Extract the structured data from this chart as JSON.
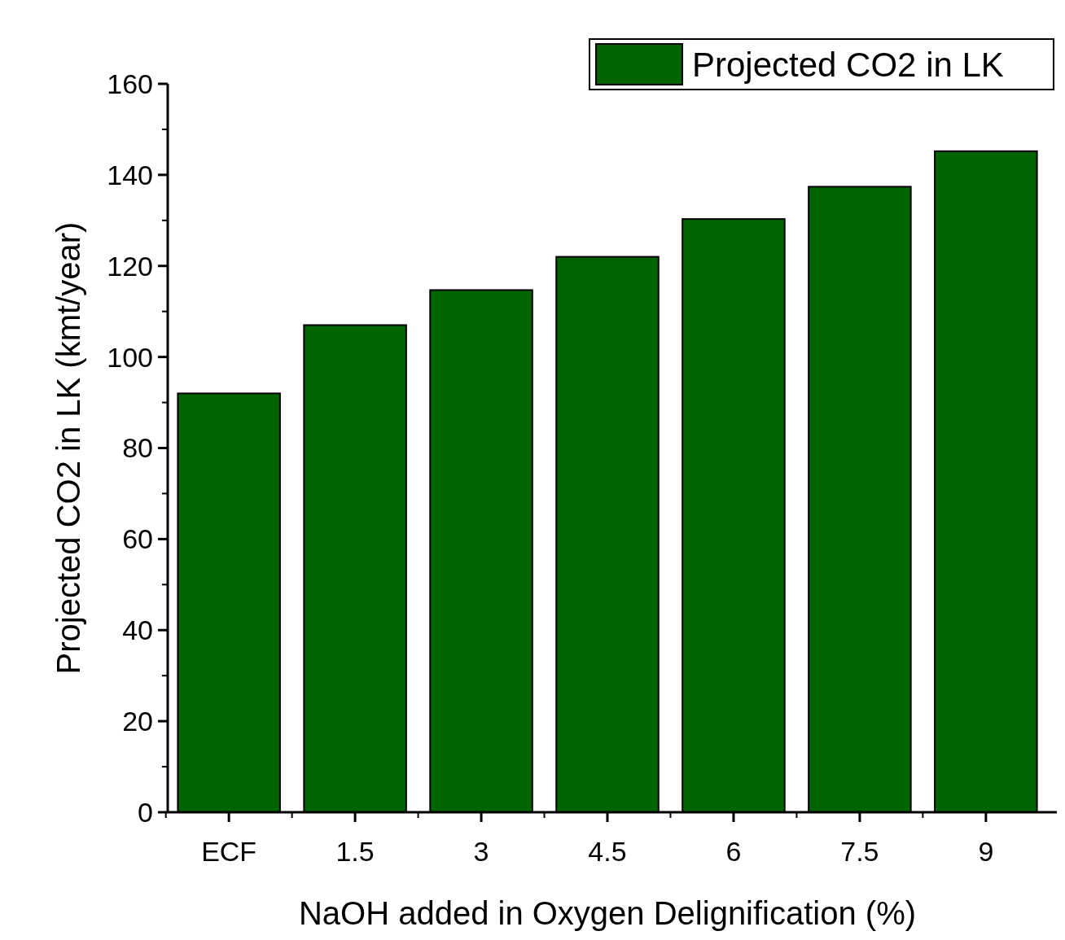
{
  "chart_data": {
    "type": "bar",
    "xlabel": "NaOH added in Oxygen Delignification (%)",
    "ylabel": "Projected CO2 in LK (kmt/year)",
    "categories": [
      "ECF",
      "1.5",
      "3",
      "4.5",
      "6",
      "7.5",
      "9"
    ],
    "series": [
      {
        "name": "Projected CO2 in LK",
        "color": "#006400",
        "values": [
          92,
          107,
          114.7,
          122,
          130.3,
          137.4,
          145.2
        ]
      }
    ],
    "ylim": [
      0,
      160
    ],
    "yticks": [
      0,
      20,
      40,
      60,
      80,
      100,
      120,
      140,
      160
    ],
    "grid": false,
    "legend": "top right"
  }
}
